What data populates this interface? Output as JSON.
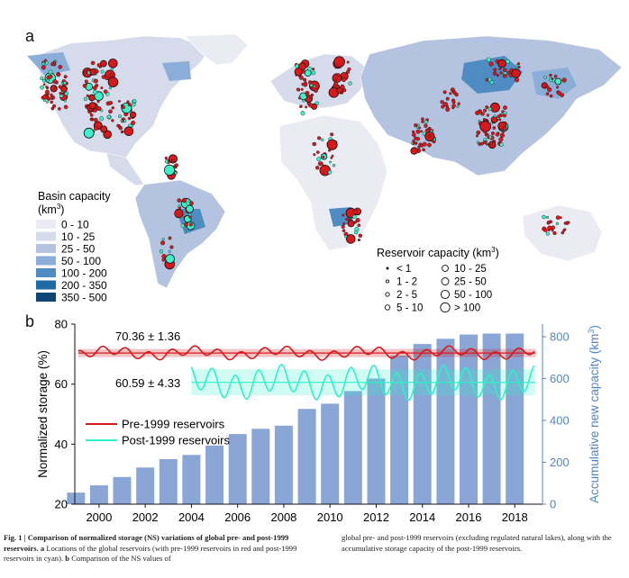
{
  "panel_a_label": "a",
  "panel_b_label": "b",
  "map": {
    "basin_legend_title_1": "Basin capacity",
    "basin_legend_title_2": "(km",
    "basin_legend_title_sup": "3",
    "basin_legend_title_close": ")",
    "basin_classes": [
      {
        "label": "0 - 10",
        "color": "#ebebf3"
      },
      {
        "label": "10 - 25",
        "color": "#d6dbeb"
      },
      {
        "label": "25 - 50",
        "color": "#b4c4e0"
      },
      {
        "label": "50 - 100",
        "color": "#8aaed7"
      },
      {
        "label": "100 - 200",
        "color": "#4f8cc4"
      },
      {
        "label": "200 - 350",
        "color": "#1e6aa7"
      },
      {
        "label": "350 - 500",
        "color": "#0b4677"
      }
    ],
    "reservoir_legend_title": "Reservoir capacity (km",
    "reservoir_legend_sup": "3",
    "reservoir_legend_close": ")",
    "reservoir_classes": [
      "< 1",
      "1 - 2",
      "2 - 5",
      "5 - 10",
      "10 - 25",
      "25 - 50",
      "50 - 100",
      "> 100"
    ],
    "pre_color": "#d7191c",
    "post_color": "#3ef0c8"
  },
  "chart_data": {
    "type": "bar+line",
    "x_ticks": [
      2000,
      2002,
      2004,
      2006,
      2008,
      2010,
      2012,
      2014,
      2016,
      2018
    ],
    "left_axis": {
      "label": "Normalized storage (%)",
      "ylim": [
        20,
        80
      ],
      "ticks": [
        20,
        40,
        60,
        80
      ]
    },
    "right_axis": {
      "label": "Accumulative new capacity (km",
      "label_sup": "3",
      "label_close": ")",
      "ylim": [
        0,
        860
      ],
      "ticks": [
        0,
        200,
        400,
        600,
        800
      ]
    },
    "bars": {
      "years": [
        1999,
        2000,
        2001,
        2002,
        2003,
        2004,
        2005,
        2006,
        2007,
        2008,
        2009,
        2010,
        2011,
        2012,
        2013,
        2014,
        2015,
        2016,
        2017,
        2018
      ],
      "values": [
        55,
        90,
        130,
        175,
        215,
        235,
        280,
        335,
        360,
        375,
        455,
        480,
        540,
        600,
        710,
        765,
        790,
        810,
        815,
        815
      ]
    },
    "series": [
      {
        "name": "Pre-1999 reservoirs",
        "color": "#d7191c",
        "mean": 70.36,
        "std": 1.36,
        "annotation": "70.36 ± 1.36"
      },
      {
        "name": "Post-1999 reservoirs",
        "color": "#2ff0c8",
        "mean": 60.59,
        "std": 4.33,
        "annotation": "60.59 ± 4.33"
      }
    ],
    "bar_color": "#8aa6d6",
    "right_axis_color": "#4f86c6"
  },
  "caption": {
    "left_bold": "Fig. 1 | Comparison of normalized storage (NS) variations of global pre- and post-1999 reservoirs.",
    "left_rest_a": " a",
    "left_rest": " Locations of the global reservoirs (with pre-1999 reservoirs in red and post-1999 reservoirs in cyan).",
    "left_b": " b",
    "left_end": " Comparison of the NS values of",
    "right": "global pre- and post-1999 reservoirs (excluding regulated natural lakes), along with the accumulative storage capacity of the post-1999 reservoirs."
  }
}
